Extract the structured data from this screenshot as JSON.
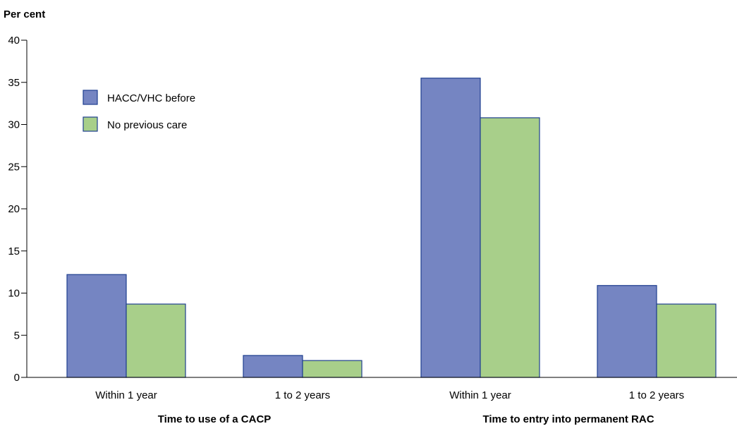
{
  "chart_data": {
    "type": "bar",
    "ylabel": "Per cent",
    "ylim": [
      0,
      40
    ],
    "yticks": [
      0,
      5,
      10,
      15,
      20,
      25,
      30,
      35,
      40
    ],
    "categories": [
      "Within 1 year",
      "1 to 2 years",
      "Within 1 year",
      "1 to 2 years"
    ],
    "groups": [
      {
        "label": "Time to use of a CACP",
        "categories": [
          0,
          1
        ]
      },
      {
        "label": "Time to entry into permanent RAC",
        "categories": [
          2,
          3
        ]
      }
    ],
    "series": [
      {
        "name": "HACC/VHC before",
        "color": "#7585c2",
        "values": [
          12.2,
          2.6,
          35.5,
          10.9
        ]
      },
      {
        "name": "No previous care",
        "color": "#a8cf8a",
        "values": [
          8.7,
          2.0,
          30.8,
          8.7
        ]
      }
    ],
    "bar_edge_color": "#1f3f8f",
    "legend": "top-left",
    "grid": false
  }
}
